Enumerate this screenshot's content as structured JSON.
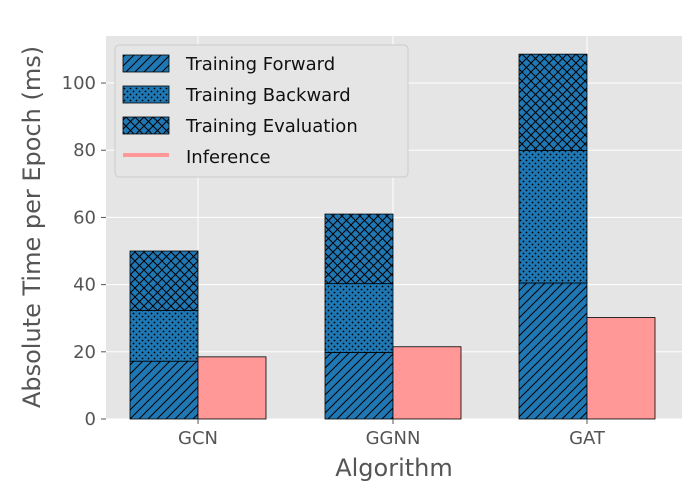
{
  "chart_data": {
    "type": "bar",
    "xlabel": "Algorithm",
    "ylabel": "Absolute Time per Epoch (ms)",
    "categories": [
      "GCN",
      "GGNN",
      "GAT"
    ],
    "ylim": [
      0,
      114
    ],
    "yticks": [
      0,
      20,
      40,
      60,
      80,
      100
    ],
    "grid": true,
    "legend_position": "top-left",
    "stacked_series": [
      {
        "name": "Training Forward",
        "values": [
          17.2,
          19.8,
          40.5
        ],
        "color": "#1f77b4",
        "hatch": "diagonal"
      },
      {
        "name": "Training Backward",
        "values": [
          15.1,
          20.5,
          39.4
        ],
        "color": "#1f77b4",
        "hatch": "dots"
      },
      {
        "name": "Training Evaluation",
        "values": [
          17.7,
          20.7,
          28.7
        ],
        "color": "#1f77b4",
        "hatch": "crosshatch"
      }
    ],
    "side_series": {
      "name": "Inference",
      "values": [
        18.5,
        21.5,
        30.2
      ],
      "color": "#ff9896"
    }
  },
  "colors": {
    "plot_background": "#e5e5e5",
    "grid": "#ffffff",
    "bar_edge": "#000000",
    "tick_text": "#555555"
  }
}
